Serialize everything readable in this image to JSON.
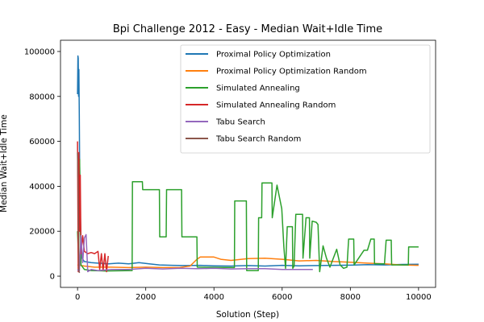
{
  "chart_data": {
    "type": "line",
    "title": "Bpi Challenge 2012 - Easy - Median Wait+Idle Time",
    "xlabel": "Solution (Step)",
    "ylabel": "Median Wait+Idle Time",
    "xlim": [
      -500,
      10500
    ],
    "ylim": [
      -5000,
      105000
    ],
    "xticks": [
      0,
      2000,
      4000,
      6000,
      8000,
      10000
    ],
    "yticks": [
      0,
      20000,
      40000,
      60000,
      80000,
      100000
    ],
    "grid": false,
    "legend_position": "top-right",
    "series": [
      {
        "name": "Proximal Policy Optimization",
        "color": "#1f77b4",
        "points": [
          [
            0,
            81000
          ],
          [
            10,
            98000
          ],
          [
            20,
            97000
          ],
          [
            30,
            80000
          ],
          [
            40,
            92000
          ],
          [
            50,
            72000
          ],
          [
            60,
            50000
          ],
          [
            80,
            30000
          ],
          [
            100,
            15000
          ],
          [
            130,
            8000
          ],
          [
            200,
            6500
          ],
          [
            400,
            6000
          ],
          [
            600,
            5800
          ],
          [
            900,
            5500
          ],
          [
            1200,
            5800
          ],
          [
            1500,
            5500
          ],
          [
            1800,
            6000
          ],
          [
            2100,
            5500
          ],
          [
            2400,
            5000
          ],
          [
            2800,
            4800
          ],
          [
            3200,
            4700
          ],
          [
            3600,
            4800
          ],
          [
            4000,
            4600
          ],
          [
            4500,
            4500
          ],
          [
            5000,
            4700
          ],
          [
            5500,
            4500
          ],
          [
            6000,
            4800
          ],
          [
            6500,
            4600
          ],
          [
            7000,
            4700
          ],
          [
            7500,
            4800
          ],
          [
            8000,
            4900
          ],
          [
            8500,
            5100
          ],
          [
            9000,
            5000
          ],
          [
            9500,
            5200
          ],
          [
            10000,
            5300
          ]
        ]
      },
      {
        "name": "Proximal Policy Optimization Random",
        "color": "#ff7f0e",
        "points": [
          [
            0,
            5000
          ],
          [
            200,
            4500
          ],
          [
            500,
            4000
          ],
          [
            1000,
            4000
          ],
          [
            1500,
            3800
          ],
          [
            2000,
            4000
          ],
          [
            2500,
            3800
          ],
          [
            3000,
            3900
          ],
          [
            3300,
            4500
          ],
          [
            3500,
            7500
          ],
          [
            3600,
            8500
          ],
          [
            4000,
            8500
          ],
          [
            4200,
            7500
          ],
          [
            4500,
            7000
          ],
          [
            5000,
            7800
          ],
          [
            5500,
            8000
          ],
          [
            6000,
            7500
          ],
          [
            6500,
            6800
          ],
          [
            7000,
            7000
          ],
          [
            7500,
            6500
          ],
          [
            8000,
            6200
          ],
          [
            8500,
            5800
          ],
          [
            9000,
            5500
          ],
          [
            9500,
            5000
          ],
          [
            10000,
            4800
          ]
        ]
      },
      {
        "name": "Simulated Annealing",
        "color": "#2ca02c",
        "points": [
          [
            0,
            20000
          ],
          [
            30,
            8000
          ],
          [
            60,
            52000
          ],
          [
            100,
            5000
          ],
          [
            200,
            3000
          ],
          [
            400,
            2500
          ],
          [
            800,
            2300
          ],
          [
            1600,
            2500
          ],
          [
            1610,
            42000
          ],
          [
            1900,
            42000
          ],
          [
            1910,
            38500
          ],
          [
            2400,
            38500
          ],
          [
            2410,
            17500
          ],
          [
            2600,
            17500
          ],
          [
            2610,
            38500
          ],
          [
            3050,
            38500
          ],
          [
            3060,
            17500
          ],
          [
            3500,
            17500
          ],
          [
            3510,
            4000
          ],
          [
            4600,
            3800
          ],
          [
            4610,
            33500
          ],
          [
            4950,
            33500
          ],
          [
            4960,
            2500
          ],
          [
            5300,
            2500
          ],
          [
            5310,
            26000
          ],
          [
            5400,
            26000
          ],
          [
            5410,
            41500
          ],
          [
            5700,
            41500
          ],
          [
            5710,
            26000
          ],
          [
            5850,
            40500
          ],
          [
            5990,
            30000
          ],
          [
            6050,
            13000
          ],
          [
            6100,
            3500
          ],
          [
            6150,
            22000
          ],
          [
            6300,
            22000
          ],
          [
            6310,
            3500
          ],
          [
            6350,
            4500
          ],
          [
            6400,
            27500
          ],
          [
            6600,
            27500
          ],
          [
            6610,
            8000
          ],
          [
            6700,
            26000
          ],
          [
            6800,
            26000
          ],
          [
            6810,
            8000
          ],
          [
            6880,
            24500
          ],
          [
            7000,
            24000
          ],
          [
            7050,
            23000
          ],
          [
            7100,
            2000
          ],
          [
            7200,
            13500
          ],
          [
            7300,
            8000
          ],
          [
            7400,
            4000
          ],
          [
            7600,
            12000
          ],
          [
            7700,
            5000
          ],
          [
            7800,
            3500
          ],
          [
            7900,
            4000
          ],
          [
            7950,
            16500
          ],
          [
            8100,
            16500
          ],
          [
            8110,
            5000
          ],
          [
            8400,
            11500
          ],
          [
            8500,
            11500
          ],
          [
            8600,
            16500
          ],
          [
            8700,
            16500
          ],
          [
            8710,
            5500
          ],
          [
            9000,
            5500
          ],
          [
            9050,
            16000
          ],
          [
            9200,
            16000
          ],
          [
            9210,
            5000
          ],
          [
            9700,
            5000
          ],
          [
            9710,
            13000
          ],
          [
            10000,
            13000
          ]
        ]
      },
      {
        "name": "Simulated Annealing Random",
        "color": "#d62728",
        "points": [
          [
            0,
            60000
          ],
          [
            20,
            2000
          ],
          [
            40,
            55000
          ],
          [
            60,
            20000
          ],
          [
            80,
            45000
          ],
          [
            100,
            10000
          ],
          [
            150,
            18000
          ],
          [
            200,
            11000
          ],
          [
            300,
            10000
          ],
          [
            400,
            10500
          ],
          [
            500,
            10000
          ],
          [
            600,
            11000
          ],
          [
            650,
            3000
          ],
          [
            700,
            10000
          ],
          [
            750,
            2500
          ],
          [
            800,
            10000
          ],
          [
            850,
            2000
          ],
          [
            900,
            9000
          ]
        ]
      },
      {
        "name": "Tabu Search",
        "color": "#9467bd",
        "points": [
          [
            0,
            3000
          ],
          [
            50,
            2000
          ],
          [
            100,
            18000
          ],
          [
            150,
            6000
          ],
          [
            200,
            17000
          ],
          [
            250,
            18500
          ],
          [
            300,
            2000
          ],
          [
            400,
            3000
          ],
          [
            600,
            2500
          ],
          [
            1000,
            3000
          ],
          [
            1500,
            3000
          ],
          [
            2000,
            3500
          ],
          [
            2500,
            3200
          ],
          [
            3000,
            3500
          ],
          [
            3500,
            3300
          ],
          [
            4000,
            3500
          ],
          [
            4500,
            3200
          ],
          [
            5000,
            3300
          ],
          [
            5500,
            3300
          ],
          [
            6000,
            3000
          ],
          [
            6500,
            3000
          ],
          [
            6900,
            3000
          ]
        ]
      },
      {
        "name": "Tabu Search Random",
        "color": "#8c564b",
        "points": [
          [
            0,
            55000
          ],
          [
            10,
            45000
          ],
          [
            20,
            40000
          ],
          [
            30,
            20000
          ],
          [
            40,
            2000
          ],
          [
            60,
            1500
          ]
        ]
      }
    ]
  }
}
